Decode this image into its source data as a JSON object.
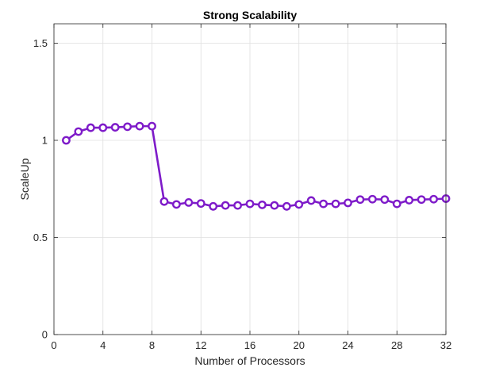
{
  "chart_data": {
    "type": "line",
    "title": "Strong Scalability",
    "xlabel": "Number of Processors",
    "ylabel": "ScaleUp",
    "xlim": [
      0,
      32
    ],
    "ylim": [
      0,
      1.6
    ],
    "xticks": [
      0,
      4,
      8,
      12,
      16,
      20,
      24,
      28,
      32
    ],
    "yticks": [
      0,
      0.5,
      1,
      1.5
    ],
    "xtick_labels": [
      "0",
      "4",
      "8",
      "12",
      "16",
      "20",
      "24",
      "28",
      "32"
    ],
    "ytick_labels": [
      "0",
      "0.5",
      "1",
      "1.5"
    ],
    "grid": true,
    "marker": "circle",
    "series": [
      {
        "color": "#7e1bc9",
        "x": [
          1,
          2,
          3,
          4,
          5,
          6,
          7,
          8,
          9,
          10,
          11,
          12,
          13,
          14,
          15,
          16,
          17,
          18,
          19,
          20,
          21,
          22,
          23,
          24,
          25,
          26,
          27,
          28,
          29,
          30,
          31,
          32
        ],
        "y": [
          1.0,
          1.045,
          1.065,
          1.065,
          1.067,
          1.07,
          1.073,
          1.073,
          0.685,
          0.67,
          0.68,
          0.675,
          0.66,
          0.665,
          0.665,
          0.673,
          0.668,
          0.665,
          0.66,
          0.67,
          0.69,
          0.673,
          0.673,
          0.678,
          0.695,
          0.697,
          0.695,
          0.673,
          0.692,
          0.695,
          0.697,
          0.7
        ]
      }
    ]
  }
}
